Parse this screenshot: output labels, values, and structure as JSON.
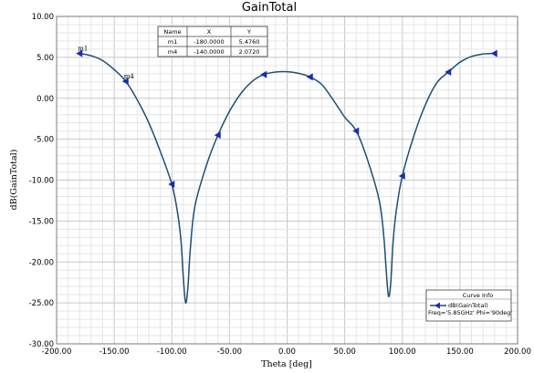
{
  "chart_data": {
    "type": "line",
    "title": "GainTotal",
    "xlabel": "Theta [deg]",
    "ylabel": "dB(GainTotal)",
    "xlim": [
      -200,
      200
    ],
    "ylim": [
      -30,
      10
    ],
    "grid": true,
    "x_ticks": [
      "-200.00",
      "-150.00",
      "-100.00",
      "-50.00",
      "0.00",
      "50.00",
      "100.00",
      "150.00",
      "200.00"
    ],
    "y_ticks": [
      "10.00",
      "5.00",
      "0.00",
      "-5.00",
      "-10.00",
      "-15.00",
      "-20.00",
      "-25.00",
      "-30.00"
    ],
    "series": [
      {
        "name": "dB(GainTotal)",
        "color": "#1e4f73",
        "x": [
          -180,
          -170,
          -160,
          -150,
          -140,
          -130,
          -120,
          -110,
          -100,
          -95,
          -92,
          -90,
          -88,
          -86,
          -84,
          -80,
          -70,
          -60,
          -50,
          -40,
          -30,
          -20,
          -10,
          0,
          10,
          20,
          30,
          40,
          50,
          60,
          70,
          80,
          84,
          86,
          88,
          90,
          92,
          95,
          100,
          110,
          120,
          130,
          140,
          150,
          160,
          170,
          180
        ],
        "y": [
          5.48,
          5.2,
          4.6,
          3.5,
          2.07,
          -0.2,
          -3.0,
          -6.5,
          -10.5,
          -14.0,
          -17.5,
          -22.0,
          -25.0,
          -23.0,
          -18.5,
          -13.2,
          -8.2,
          -4.5,
          -1.6,
          0.6,
          2.1,
          2.9,
          3.2,
          3.25,
          3.05,
          2.6,
          1.7,
          -0.2,
          -2.3,
          -4.0,
          -7.6,
          -12.5,
          -17.0,
          -21.0,
          -24.2,
          -22.5,
          -17.5,
          -13.5,
          -9.5,
          -4.6,
          -0.8,
          1.9,
          3.2,
          4.4,
          5.1,
          5.4,
          5.48
        ]
      }
    ],
    "arrow_markers_x": [
      -180,
      -140,
      -100,
      -60,
      -20,
      20,
      60,
      100,
      140,
      180
    ],
    "markers": [
      {
        "name": "m1",
        "x": -180,
        "y": 5.48
      },
      {
        "name": "m4",
        "x": -140,
        "y": 2.07
      }
    ],
    "marker_table": {
      "headers": [
        "Name",
        "X",
        "Y"
      ],
      "rows": [
        [
          "m1",
          "-180.0000",
          "5.4760"
        ],
        [
          "m4",
          "-140.0000",
          "2.0720"
        ]
      ]
    },
    "curve_info": {
      "title": "Curve Info",
      "trace": "dB(GainTotal)",
      "params": "Freq='5.85GHz' Phi='90deg'"
    }
  }
}
